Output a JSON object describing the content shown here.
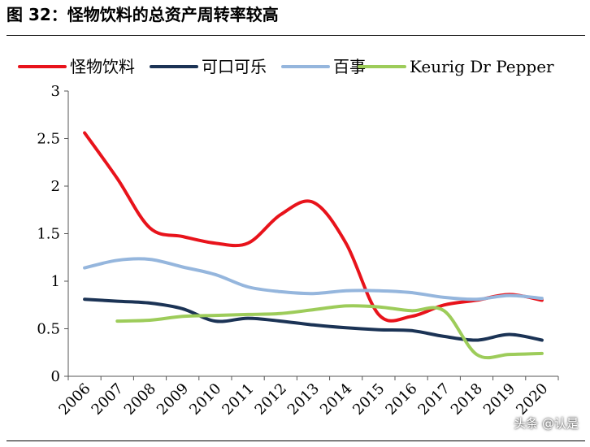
{
  "figure_title": "图 32：怪物饮料的总资产周转率较高",
  "watermark": "头条 @认是",
  "chart_data": {
    "type": "line",
    "title": "图 32：怪物饮料的总资产周转率较高",
    "xlabel": "",
    "ylabel": "",
    "ylim": [
      0,
      3
    ],
    "yticks": [
      "0",
      "0.5",
      "1",
      "1.5",
      "2",
      "2.5",
      "3"
    ],
    "categories": [
      "2006",
      "2007",
      "2008",
      "2009",
      "2010",
      "2011",
      "2012",
      "2013",
      "2014",
      "2015",
      "2016",
      "2017",
      "2018",
      "2019",
      "2020"
    ],
    "legend_position": "top",
    "grid": false,
    "series": [
      {
        "name": "怪物饮料",
        "color": "#e8131b",
        "values": [
          2.56,
          2.08,
          1.56,
          1.47,
          1.4,
          1.4,
          1.7,
          1.83,
          1.4,
          0.65,
          0.63,
          0.75,
          0.8,
          0.86,
          0.8
        ]
      },
      {
        "name": "可口可乐",
        "color": "#1b3355",
        "values": [
          0.81,
          0.79,
          0.77,
          0.71,
          0.58,
          0.61,
          0.58,
          0.54,
          0.51,
          0.49,
          0.48,
          0.42,
          0.38,
          0.44,
          0.38
        ]
      },
      {
        "name": "百事",
        "color": "#95b6dd",
        "values": [
          1.14,
          1.22,
          1.23,
          1.15,
          1.07,
          0.94,
          0.89,
          0.87,
          0.9,
          0.9,
          0.88,
          0.83,
          0.81,
          0.85,
          0.82
        ]
      },
      {
        "name": "Keurig Dr Pepper",
        "color": "#9dcc5a",
        "values": [
          null,
          0.58,
          0.59,
          0.63,
          0.64,
          0.65,
          0.66,
          0.7,
          0.74,
          0.73,
          0.69,
          0.69,
          0.23,
          0.23,
          0.24
        ]
      }
    ]
  }
}
